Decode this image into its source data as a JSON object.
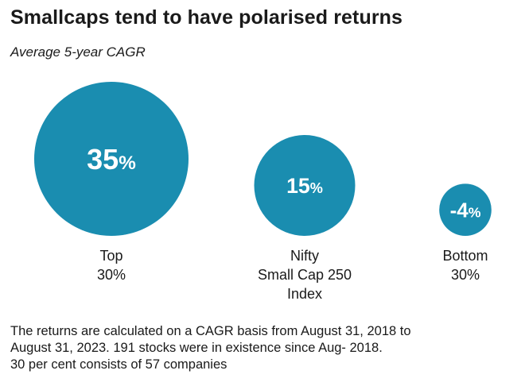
{
  "header": {
    "title": "Smallcaps tend to have polarised returns",
    "subtitle": "Average 5-year CAGR"
  },
  "chart_data": {
    "type": "bubble",
    "title": "Smallcaps tend to have polarised returns",
    "subtitle": "Average 5-year CAGR",
    "categories": [
      "Top 30%",
      "Nifty Small Cap 250 Index",
      "Bottom 30%"
    ],
    "category_lines": [
      [
        "Top",
        "30%"
      ],
      [
        "Nifty",
        "Small Cap 250",
        "Index"
      ],
      [
        "Bottom",
        "30%"
      ]
    ],
    "values": [
      35,
      15,
      -4
    ],
    "value_labels": [
      {
        "num": "35",
        "unit": "%"
      },
      {
        "num": "15",
        "unit": "%"
      },
      {
        "num": "-4",
        "unit": "%"
      }
    ],
    "unit": "%",
    "color": "#1a8db0"
  },
  "footnote": {
    "lines": [
      "The returns are calculated on a CAGR basis from August 31, 2018 to",
      "August 31, 2023. 191 stocks were in existence since Aug- 2018.",
      "30 per cent consists of 57 companies"
    ]
  }
}
